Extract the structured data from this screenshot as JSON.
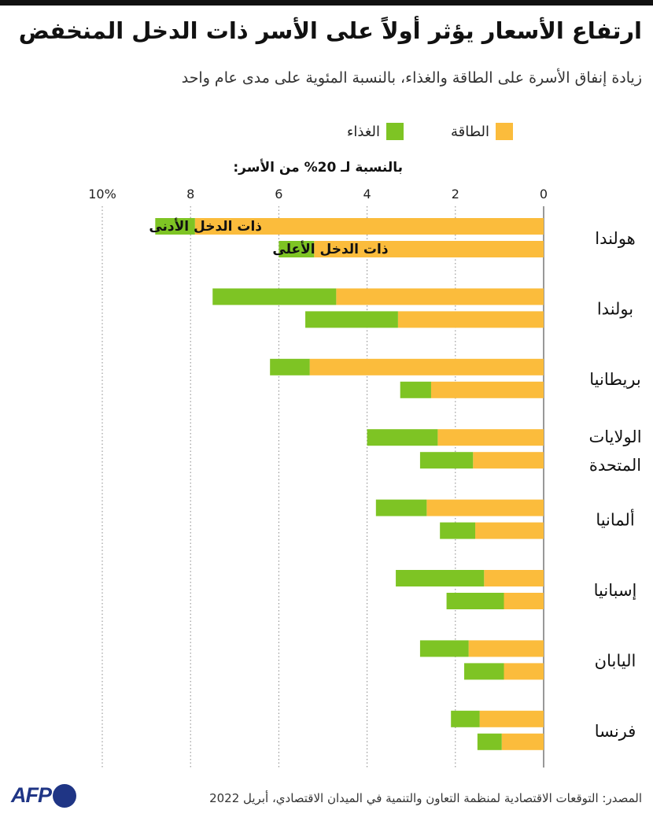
{
  "title": "ارتفاع الأسعار يؤثر أولاً على الأسر ذات الدخل المنخفض",
  "subtitle": "زيادة إنفاق الأسرة على الطاقة والغذاء، بالنسبة المئوية على مدى عام واحد",
  "legend": {
    "energy": "الطاقة",
    "food": "الغذاء"
  },
  "colors": {
    "energy": "#fbbc3c",
    "food": "#7ec424",
    "grid": "#888888"
  },
  "axis_title": "بالنسبة لـ 20% من الأسر:",
  "source": "المصدر: التوقعات الاقتصادية لمنظمة التعاون والتنمية في الميدان الاقتصادي، أبريل 2022",
  "logo": "AFP",
  "chart_data": {
    "type": "bar",
    "orientation": "horizontal",
    "stacked": true,
    "xlim": [
      0,
      10
    ],
    "ticks": [
      "0",
      "2",
      "4",
      "6",
      "8",
      "10%"
    ],
    "bar_labels": {
      "low": "ذات الدخل الأدنى",
      "high": "ذات الدخل الأعلى"
    },
    "categories": [
      {
        "name": "هولندا",
        "low": {
          "energy": 7.9,
          "food": 0.9
        },
        "high": {
          "energy": 5.2,
          "food": 0.8
        }
      },
      {
        "name": "بولندا",
        "low": {
          "energy": 4.7,
          "food": 2.8
        },
        "high": {
          "energy": 3.3,
          "food": 2.1
        }
      },
      {
        "name": "بريطانيا",
        "low": {
          "energy": 5.3,
          "food": 0.9
        },
        "high": {
          "energy": 2.55,
          "food": 0.7
        }
      },
      {
        "name": "الولايات المتحدة",
        "low": {
          "energy": 2.4,
          "food": 1.6
        },
        "high": {
          "energy": 1.6,
          "food": 1.2
        }
      },
      {
        "name": "ألمانيا",
        "low": {
          "energy": 2.65,
          "food": 1.15
        },
        "high": {
          "energy": 1.55,
          "food": 0.8
        }
      },
      {
        "name": "إسبانيا",
        "low": {
          "energy": 1.35,
          "food": 2.0
        },
        "high": {
          "energy": 0.9,
          "food": 1.3
        }
      },
      {
        "name": "اليابان",
        "low": {
          "energy": 1.7,
          "food": 1.1
        },
        "high": {
          "energy": 0.9,
          "food": 0.9
        }
      },
      {
        "name": "فرنسا",
        "low": {
          "energy": 1.45,
          "food": 0.65
        },
        "high": {
          "energy": 0.95,
          "food": 0.55
        }
      }
    ]
  }
}
